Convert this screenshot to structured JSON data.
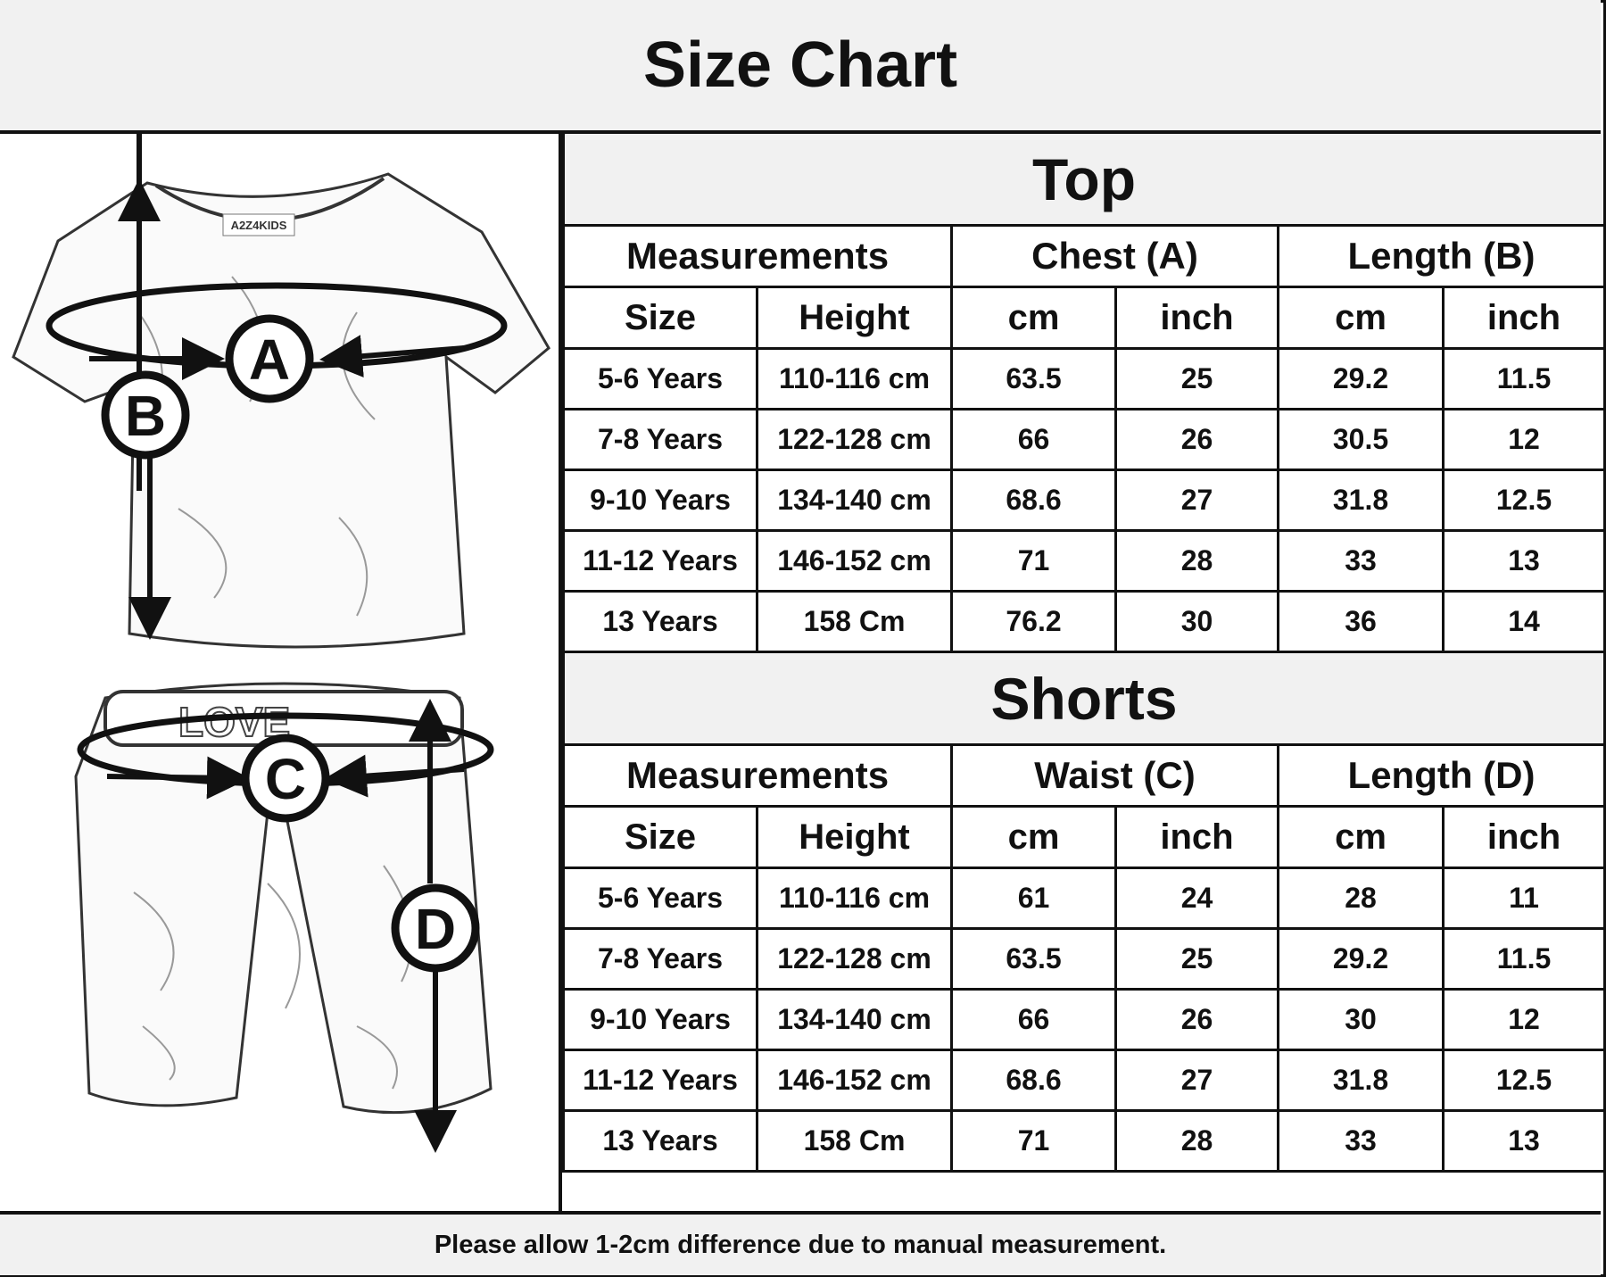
{
  "title": "Size Chart",
  "diagram_labels": {
    "a": "A",
    "b": "B",
    "c": "C",
    "d": "D",
    "waistband_text": "LOVE",
    "logo": "A2Z4KIDS"
  },
  "top": {
    "title": "Top",
    "groups": [
      "Measurements",
      "Chest (A)",
      "Length (B)"
    ],
    "columns": [
      "Size",
      "Height",
      "cm",
      "inch",
      "cm",
      "inch"
    ],
    "rows": [
      [
        "5-6 Years",
        "110-116 cm",
        "63.5",
        "25",
        "29.2",
        "11.5"
      ],
      [
        "7-8 Years",
        "122-128 cm",
        "66",
        "26",
        "30.5",
        "12"
      ],
      [
        "9-10 Years",
        "134-140 cm",
        "68.6",
        "27",
        "31.8",
        "12.5"
      ],
      [
        "11-12 Years",
        "146-152 cm",
        "71",
        "28",
        "33",
        "13"
      ],
      [
        "13 Years",
        "158 Cm",
        "76.2",
        "30",
        "36",
        "14"
      ]
    ]
  },
  "shorts": {
    "title": "Shorts",
    "groups": [
      "Measurements",
      "Waist (C)",
      "Length (D)"
    ],
    "columns": [
      "Size",
      "Height",
      "cm",
      "inch",
      "cm",
      "inch"
    ],
    "rows": [
      [
        "5-6 Years",
        "110-116 cm",
        "61",
        "24",
        "28",
        "11"
      ],
      [
        "7-8 Years",
        "122-128 cm",
        "63.5",
        "25",
        "29.2",
        "11.5"
      ],
      [
        "9-10 Years",
        "134-140 cm",
        "66",
        "26",
        "30",
        "12"
      ],
      [
        "11-12 Years",
        "146-152 cm",
        "68.6",
        "27",
        "31.8",
        "12.5"
      ],
      [
        "13 Years",
        "158 Cm",
        "71",
        "28",
        "33",
        "13"
      ]
    ]
  },
  "footer": "Please allow 1-2cm difference due to manual measurement."
}
